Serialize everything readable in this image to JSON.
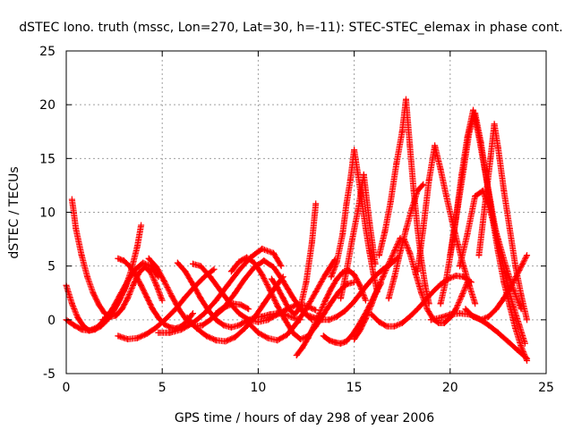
{
  "chart_data": {
    "type": "scatter",
    "title": "dSTEC Iono. truth (mssc, Lon=270, Lat=30, h=-11): STEC-STEC_elemax in phase cont.",
    "xlabel": "GPS time / hours of day 298 of year 2006",
    "ylabel": "dSTEC  / TECUs",
    "xlim": [
      0,
      25
    ],
    "ylim": [
      -5,
      25
    ],
    "xticks": [
      0,
      5,
      10,
      15,
      20,
      25
    ],
    "yticks": [
      -5,
      0,
      5,
      10,
      15,
      20,
      25
    ],
    "grid": true,
    "marker": "+",
    "color": "#ff0000",
    "series": [
      {
        "x": [
          0.0,
          0.3,
          0.6,
          0.9,
          1.2,
          1.5,
          1.8,
          2.1,
          2.4,
          2.7,
          3.0,
          3.2
        ],
        "y": [
          3.2,
          1.5,
          0.2,
          -0.6,
          -1.0,
          -0.9,
          -0.6,
          -0.1,
          0.6,
          1.6,
          2.7,
          3.6
        ]
      },
      {
        "x": [
          0.0,
          0.4,
          0.8,
          1.2,
          1.6,
          2.0,
          2.4,
          2.8,
          3.2,
          3.6,
          4.0,
          4.4,
          4.8
        ],
        "y": [
          0.0,
          -0.5,
          -0.9,
          -1.0,
          -0.7,
          0.0,
          1.0,
          2.3,
          3.6,
          4.7,
          5.3,
          5.0,
          4.0
        ]
      },
      {
        "x": [
          0.3,
          0.5,
          0.8,
          1.1,
          1.4,
          1.7,
          2.0,
          2.3,
          2.6,
          2.9,
          3.2,
          3.5,
          3.8,
          4.1,
          4.4,
          4.7,
          5.0
        ],
        "y": [
          11.2,
          8.5,
          6.0,
          4.0,
          2.5,
          1.4,
          0.6,
          0.3,
          0.4,
          1.0,
          2.0,
          3.3,
          4.4,
          4.9,
          4.4,
          3.2,
          1.8
        ]
      },
      {
        "x": [
          2.7,
          3.0,
          3.3,
          3.6,
          3.9,
          4.2,
          4.5,
          4.8,
          5.1,
          5.4,
          5.7,
          6.0,
          6.3,
          6.6
        ],
        "y": [
          5.7,
          5.5,
          5.0,
          4.2,
          3.2,
          2.1,
          1.0,
          0.2,
          -0.4,
          -0.7,
          -0.8,
          -0.6,
          -0.1,
          0.6
        ]
      },
      {
        "x": [
          2.7,
          3.2,
          3.7,
          4.2,
          4.7,
          5.2,
          5.7,
          6.2,
          6.7,
          7.2,
          7.7
        ],
        "y": [
          -1.5,
          -1.8,
          -1.7,
          -1.3,
          -0.7,
          0.1,
          1.0,
          2.1,
          3.1,
          4.0,
          4.7
        ]
      },
      {
        "x": [
          1.9,
          2.2,
          2.5,
          2.8,
          3.1,
          3.4,
          3.7,
          3.9
        ],
        "y": [
          0.0,
          0.3,
          1.0,
          1.9,
          3.1,
          4.7,
          6.8,
          8.8
        ]
      },
      {
        "x": [
          4.3,
          4.7,
          5.1,
          5.5,
          5.9,
          6.3,
          6.7,
          7.1,
          7.5,
          7.9,
          8.3,
          8.7,
          9.1,
          9.5
        ],
        "y": [
          5.7,
          4.9,
          3.6,
          2.2,
          0.9,
          -0.1,
          -0.6,
          -0.5,
          0.0,
          0.6,
          1.2,
          1.5,
          1.4,
          1.0
        ]
      },
      {
        "x": [
          4.8,
          5.4,
          6.0,
          6.6,
          7.2,
          7.8,
          8.4,
          9.0,
          9.6,
          10.2,
          10.8,
          11.2
        ],
        "y": [
          -1.2,
          -1.2,
          -0.9,
          -0.3,
          0.6,
          1.8,
          3.2,
          4.6,
          5.8,
          6.6,
          6.2,
          5.0
        ]
      },
      {
        "x": [
          5.8,
          6.2,
          6.6,
          7.0,
          7.4,
          7.8,
          8.2,
          8.6,
          9.0,
          9.4,
          9.8,
          10.2,
          10.6,
          11.0,
          11.4,
          11.8,
          12.2
        ],
        "y": [
          5.3,
          4.5,
          3.3,
          2.0,
          0.9,
          0.0,
          -0.5,
          -0.7,
          -0.5,
          -0.1,
          0.2,
          0.3,
          0.5,
          0.6,
          0.5,
          0.2,
          0.0
        ]
      },
      {
        "x": [
          6.3,
          6.8,
          7.3,
          7.8,
          8.3,
          8.8,
          9.3,
          9.8,
          10.3,
          10.8,
          11.3
        ],
        "y": [
          0.2,
          -0.8,
          -1.5,
          -1.9,
          -2.0,
          -1.6,
          -0.8,
          0.2,
          1.5,
          2.8,
          4.0
        ]
      },
      {
        "x": [
          6.6,
          7.0,
          7.5,
          8.0,
          8.5,
          9.0,
          9.5,
          10.0,
          10.5,
          11.0,
          11.5,
          12.0,
          12.5,
          13.0
        ],
        "y": [
          5.2,
          5.0,
          4.0,
          2.8,
          1.6,
          0.6,
          0.0,
          -0.2,
          0.0,
          0.5,
          1.0,
          1.4,
          1.3,
          0.9
        ]
      },
      {
        "x": [
          7.8,
          8.3,
          8.8,
          9.3,
          9.8,
          10.3,
          10.8,
          11.3,
          11.8,
          12.3,
          12.8
        ],
        "y": [
          0.6,
          1.3,
          2.5,
          3.8,
          4.9,
          5.5,
          4.9,
          3.6,
          2.1,
          0.8,
          0.0
        ]
      },
      {
        "x": [
          8.6,
          9.0,
          9.4,
          9.8,
          10.2,
          10.6,
          11.0,
          11.4,
          11.8,
          12.2,
          12.6,
          13.0,
          13.4,
          13.8,
          14.2,
          14.6,
          15.0
        ],
        "y": [
          4.5,
          5.4,
          5.8,
          5.3,
          4.2,
          2.8,
          1.3,
          0.0,
          -1.2,
          -1.8,
          -1.5,
          -0.6,
          0.5,
          1.6,
          2.6,
          3.3,
          3.5
        ]
      },
      {
        "x": [
          9.5,
          10.0,
          10.5,
          11.0,
          11.5,
          12.0,
          12.5,
          13.0,
          13.5,
          14.0
        ],
        "y": [
          -0.3,
          -1.2,
          -1.7,
          -1.9,
          -1.4,
          -0.3,
          1.0,
          2.6,
          4.2,
          5.6
        ]
      },
      {
        "x": [
          10.7,
          11.0,
          11.3,
          11.6,
          11.9,
          12.2,
          12.5,
          12.8,
          13.0
        ],
        "y": [
          3.8,
          3.0,
          2.0,
          1.0,
          0.5,
          1.2,
          3.5,
          7.2,
          10.8
        ]
      },
      {
        "x": [
          12.0,
          12.3,
          12.6,
          12.9,
          13.2,
          13.5,
          13.8,
          14.1,
          14.4,
          14.7,
          15.0,
          15.3,
          15.6
        ],
        "y": [
          -3.3,
          -2.6,
          -1.7,
          -0.6,
          0.6,
          1.8,
          2.9,
          3.8,
          4.4,
          4.6,
          4.2,
          3.2,
          1.8
        ]
      },
      {
        "x": [
          12.5,
          12.9,
          13.3,
          13.7,
          14.1,
          14.5,
          14.9,
          15.3,
          15.7,
          16.1,
          16.5,
          16.9,
          17.3
        ],
        "y": [
          0.5,
          0.2,
          0.0,
          0.0,
          0.3,
          0.8,
          1.5,
          2.4,
          3.3,
          4.1,
          4.7,
          5.2,
          5.8
        ]
      },
      {
        "x": [
          13.4,
          13.7,
          14.0,
          14.3,
          14.6,
          14.9,
          15.2,
          15.5,
          15.8,
          16.1,
          16.4
        ],
        "y": [
          -1.5,
          -1.9,
          -2.1,
          -2.2,
          -2.0,
          -1.4,
          -0.6,
          0.3,
          1.3,
          2.4,
          3.4
        ]
      },
      {
        "x": [
          13.8,
          14.1,
          14.4,
          14.6,
          14.8,
          15.0,
          15.2,
          15.4,
          15.6,
          15.8,
          16.0,
          16.2
        ],
        "y": [
          4.0,
          5.4,
          8.0,
          10.8,
          13.0,
          15.8,
          13.5,
          11.0,
          8.5,
          6.3,
          4.3,
          2.6
        ]
      },
      {
        "x": [
          14.3,
          14.6,
          14.9,
          15.2,
          15.5,
          15.8,
          16.1
        ],
        "y": [
          2.0,
          4.5,
          7.5,
          10.2,
          13.5,
          9.0,
          5.2
        ]
      },
      {
        "x": [
          15.0,
          15.3,
          15.6,
          15.9,
          16.2,
          16.5,
          16.8,
          17.1,
          17.4
        ],
        "y": [
          -1.8,
          -1.0,
          0.1,
          1.4,
          2.8,
          4.0,
          5.2,
          6.4,
          7.6
        ]
      },
      {
        "x": [
          15.9,
          16.3,
          16.7,
          17.1,
          17.5,
          17.9,
          18.3,
          18.7,
          19.1,
          19.5,
          19.9,
          20.3,
          20.7,
          21.1
        ],
        "y": [
          0.5,
          -0.2,
          -0.6,
          -0.6,
          -0.3,
          0.3,
          1.0,
          1.8,
          2.6,
          3.3,
          3.8,
          4.1,
          4.0,
          3.5
        ]
      },
      {
        "x": [
          16.3,
          16.6,
          16.9,
          17.2,
          17.5,
          17.7,
          17.9,
          18.1,
          18.3,
          18.5,
          18.7,
          18.9
        ],
        "y": [
          6.0,
          8.2,
          11.0,
          14.5,
          17.5,
          20.5,
          16.2,
          12.0,
          8.5,
          5.5,
          3.2,
          1.5
        ]
      },
      {
        "x": [
          16.8,
          17.1,
          17.4,
          17.7,
          18.0,
          18.3,
          18.6
        ],
        "y": [
          2.0,
          4.0,
          6.3,
          8.4,
          10.3,
          12.0,
          12.6
        ]
      },
      {
        "x": [
          17.6,
          17.9,
          18.2,
          18.5,
          18.8,
          19.1,
          19.4,
          19.7,
          20.0,
          20.3,
          20.6,
          20.9
        ],
        "y": [
          7.5,
          6.2,
          4.3,
          2.5,
          1.0,
          0.1,
          -0.3,
          -0.3,
          0.2,
          1.0,
          2.2,
          3.5
        ]
      },
      {
        "x": [
          18.3,
          18.6,
          18.9,
          19.2,
          19.5,
          19.8,
          20.1,
          20.4,
          20.7,
          21.0,
          21.3
        ],
        "y": [
          4.5,
          8.5,
          13.0,
          16.2,
          14.0,
          11.5,
          9.2,
          7.0,
          5.0,
          3.2,
          1.5
        ]
      },
      {
        "x": [
          19.5,
          19.8,
          20.1,
          20.4,
          20.7,
          21.0,
          21.3,
          21.6,
          21.9,
          22.2,
          22.5,
          22.8,
          23.1,
          23.4,
          23.7,
          24.0
        ],
        "y": [
          1.5,
          3.8,
          7.0,
          10.5,
          14.0,
          17.5,
          19.2,
          16.5,
          13.0,
          9.5,
          6.3,
          3.5,
          1.3,
          -0.8,
          -2.5,
          -3.8
        ]
      },
      {
        "x": [
          20.0,
          20.3,
          20.6,
          20.9,
          21.2,
          21.5,
          21.8,
          22.1,
          22.4,
          22.7,
          23.0,
          23.3,
          23.6,
          23.9
        ],
        "y": [
          6.0,
          9.5,
          13.5,
          17.0,
          19.5,
          17.0,
          14.0,
          11.0,
          8.0,
          5.5,
          3.2,
          1.2,
          -0.5,
          -2.2
        ]
      },
      {
        "x": [
          21.5,
          21.8,
          22.1,
          22.3,
          22.5,
          22.8,
          23.1,
          23.4,
          23.7,
          24.0
        ],
        "y": [
          6.0,
          10.5,
          15.0,
          18.2,
          16.0,
          12.0,
          8.5,
          5.0,
          2.3,
          0.0
        ]
      },
      {
        "x": [
          20.5,
          20.9,
          21.3,
          21.7,
          22.1,
          22.5,
          22.9,
          23.3,
          23.7
        ],
        "y": [
          5.0,
          8.0,
          11.5,
          12.0,
          10.0,
          7.5,
          5.0,
          2.8,
          1.0
        ]
      },
      {
        "x": [
          19.0,
          19.5,
          20.0,
          20.5,
          21.0,
          21.5,
          22.0,
          22.5,
          23.0,
          23.5,
          24.0
        ],
        "y": [
          0.0,
          0.2,
          0.5,
          0.6,
          0.5,
          0.1,
          -0.5,
          -1.2,
          -2.0,
          -2.8,
          -3.6
        ]
      },
      {
        "x": [
          20.8,
          21.2,
          21.6,
          22.0,
          22.4,
          22.8,
          23.2,
          23.6,
          24.0
        ],
        "y": [
          1.0,
          0.3,
          0.0,
          0.3,
          1.0,
          2.0,
          3.2,
          4.6,
          6.0
        ]
      }
    ]
  }
}
